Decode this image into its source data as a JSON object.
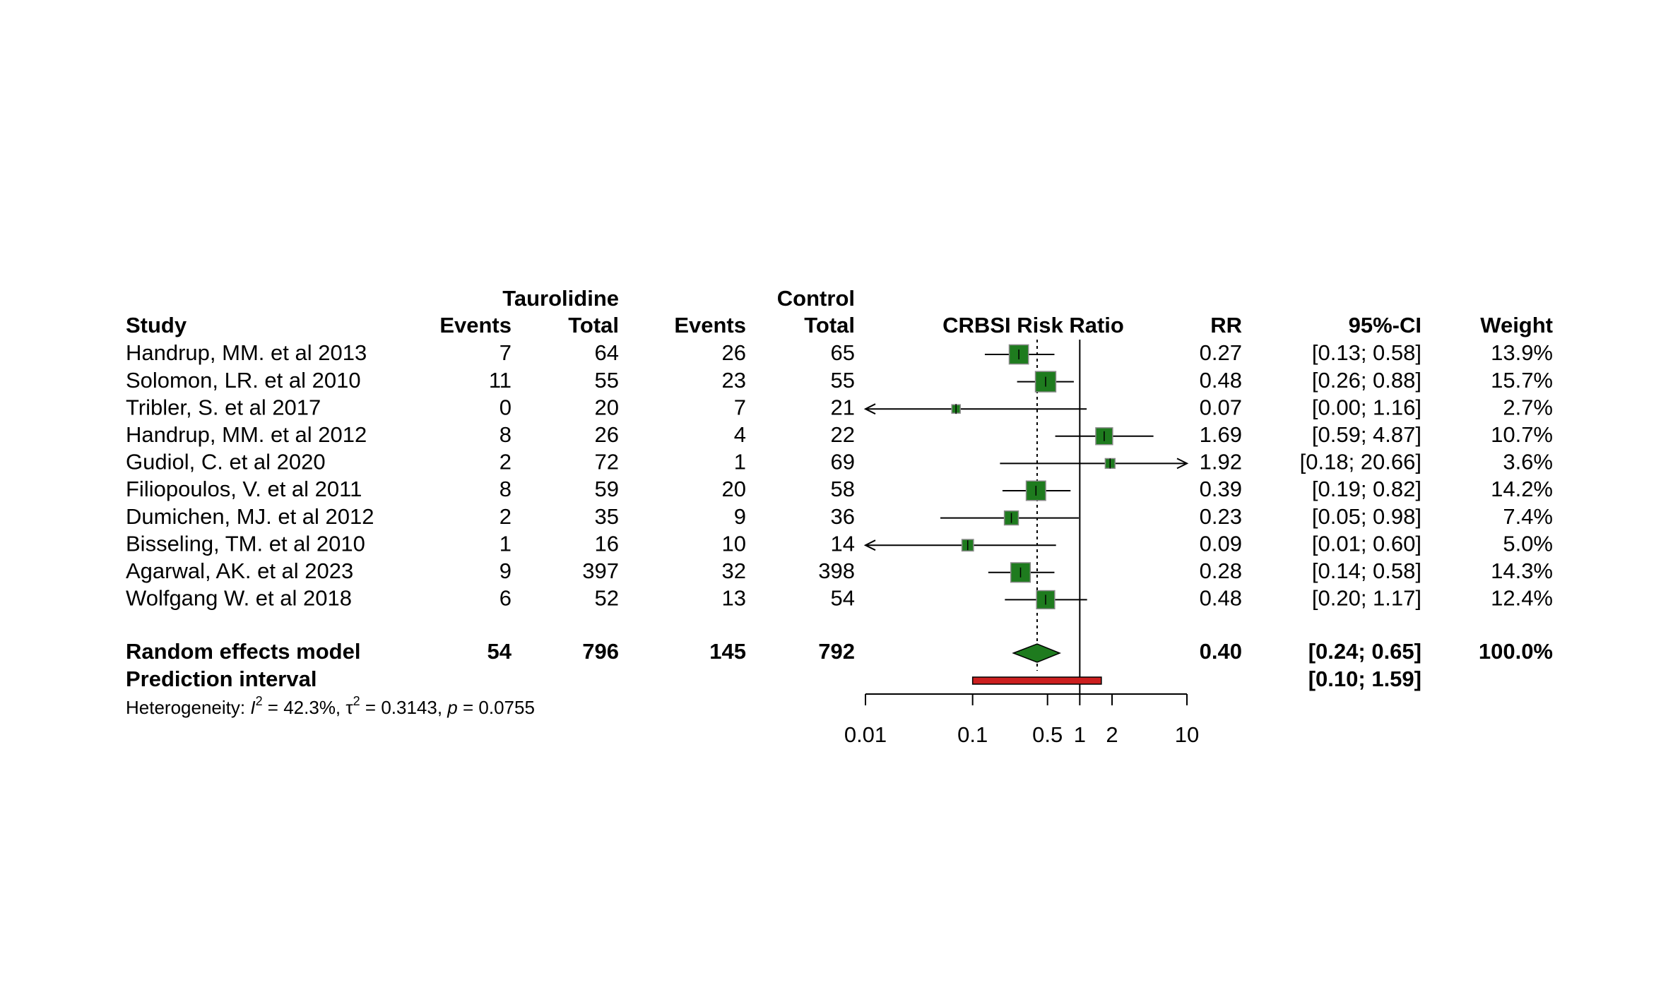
{
  "chart_data": {
    "type": "forest",
    "title": "CRBSI Risk Ratio",
    "xlabel": "",
    "ylabel": "",
    "x_scale": "log",
    "xlim": [
      0.01,
      10
    ],
    "x_ticks": [
      0.01,
      0.1,
      0.5,
      1,
      2,
      10
    ],
    "x_tick_labels": [
      "0.01",
      "0.1",
      "0.5",
      "1",
      "2",
      "10"
    ],
    "group_headers": {
      "treatment": "Taurolidine",
      "control": "Control"
    },
    "column_headers": {
      "study": "Study",
      "t_events": "Events",
      "t_total": "Total",
      "c_events": "Events",
      "c_total": "Total",
      "rr": "RR",
      "ci": "95%-CI",
      "weight": "Weight"
    },
    "colors": {
      "study_box": "#1e7b1e",
      "summary_diamond": "#1e7b1e",
      "prediction_bar": "#cc1f1f"
    },
    "studies": [
      {
        "name": "Handrup, MM. et al 2013",
        "t_events": "7",
        "t_total": "64",
        "c_events": "26",
        "c_total": "65",
        "rr": 0.27,
        "lower": 0.13,
        "upper": 0.58,
        "rr_label": "0.27",
        "ci_label": "[0.13;  0.58]",
        "weight": "13.9%",
        "w": 13.9
      },
      {
        "name": "Solomon, LR. et al 2010",
        "t_events": "11",
        "t_total": "55",
        "c_events": "23",
        "c_total": "55",
        "rr": 0.48,
        "lower": 0.26,
        "upper": 0.88,
        "rr_label": "0.48",
        "ci_label": "[0.26;  0.88]",
        "weight": "15.7%",
        "w": 15.7
      },
      {
        "name": "Tribler, S. et al 2017",
        "t_events": "0",
        "t_total": "20",
        "c_events": "7",
        "c_total": "21",
        "rr": 0.07,
        "lower": 0.0,
        "upper": 1.16,
        "rr_label": "0.07",
        "ci_label": "[0.00;  1.16]",
        "weight": "2.7%",
        "w": 2.7
      },
      {
        "name": "Handrup, MM. et al 2012",
        "t_events": "8",
        "t_total": "26",
        "c_events": "4",
        "c_total": "22",
        "rr": 1.69,
        "lower": 0.59,
        "upper": 4.87,
        "rr_label": "1.69",
        "ci_label": "[0.59;  4.87]",
        "weight": "10.7%",
        "w": 10.7
      },
      {
        "name": "Gudiol, C. et al 2020",
        "t_events": "2",
        "t_total": "72",
        "c_events": "1",
        "c_total": "69",
        "rr": 1.92,
        "lower": 0.18,
        "upper": 20.66,
        "rr_label": "1.92",
        "ci_label": "[0.18; 20.66]",
        "weight": "3.6%",
        "w": 3.6
      },
      {
        "name": "Filiopoulos, V. et al 2011",
        "t_events": "8",
        "t_total": "59",
        "c_events": "20",
        "c_total": "58",
        "rr": 0.39,
        "lower": 0.19,
        "upper": 0.82,
        "rr_label": "0.39",
        "ci_label": "[0.19;  0.82]",
        "weight": "14.2%",
        "w": 14.2
      },
      {
        "name": "Dumichen, MJ. et al 2012",
        "t_events": "2",
        "t_total": "35",
        "c_events": "9",
        "c_total": "36",
        "rr": 0.23,
        "lower": 0.05,
        "upper": 0.98,
        "rr_label": "0.23",
        "ci_label": "[0.05;  0.98]",
        "weight": "7.4%",
        "w": 7.4
      },
      {
        "name": "Bisseling, TM. et al 2010",
        "t_events": "1",
        "t_total": "16",
        "c_events": "10",
        "c_total": "14",
        "rr": 0.09,
        "lower": 0.01,
        "upper": 0.6,
        "rr_label": "0.09",
        "ci_label": "[0.01;  0.60]",
        "weight": "5.0%",
        "w": 5.0
      },
      {
        "name": "Agarwal, AK. et al 2023",
        "t_events": "9",
        "t_total": "397",
        "c_events": "32",
        "c_total": "398",
        "rr": 0.28,
        "lower": 0.14,
        "upper": 0.58,
        "rr_label": "0.28",
        "ci_label": "[0.14;  0.58]",
        "weight": "14.3%",
        "w": 14.3
      },
      {
        "name": "Wolfgang W. et al 2018",
        "t_events": "6",
        "t_total": "52",
        "c_events": "13",
        "c_total": "54",
        "rr": 0.48,
        "lower": 0.2,
        "upper": 1.17,
        "rr_label": "0.48",
        "ci_label": "[0.20;  1.17]",
        "weight": "12.4%",
        "w": 12.4
      }
    ],
    "summary": {
      "name": "Random effects model",
      "t_events": "54",
      "t_total": "796",
      "c_events": "145",
      "c_total": "792",
      "rr": 0.4,
      "lower": 0.24,
      "upper": 0.65,
      "rr_label": "0.40",
      "ci_label": "[0.24;  0.65]",
      "weight": "100.0%"
    },
    "prediction_interval": {
      "name": "Prediction interval",
      "lower": 0.1,
      "upper": 1.59,
      "ci_label": "[0.10;  1.59]"
    },
    "heterogeneity": {
      "prefix": "Heterogeneity: ",
      "i2_symbol": "I",
      "i2_value": " = 42.3%, ",
      "tau_symbol": "τ",
      "tau_value": " = 0.3143, ",
      "p_symbol": "p",
      "p_value": " = 0.0755",
      "superscript": "2"
    }
  }
}
